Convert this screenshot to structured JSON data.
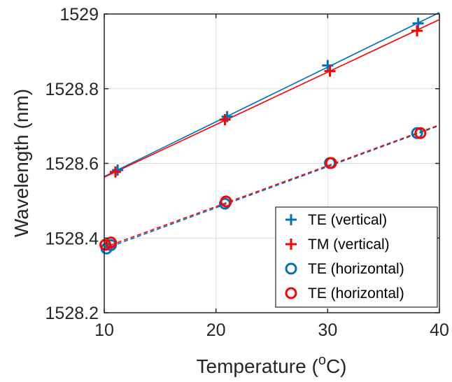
{
  "chart_data": {
    "type": "scatter",
    "title": "",
    "xlabel": "Temperature (",
    "xlabel_superscript": "o",
    "xlabel_suffix": "C)",
    "ylabel": "Wavelength (nm)",
    "xlim": [
      10,
      40
    ],
    "ylim": [
      1528.2,
      1529
    ],
    "xticks": [
      "10",
      "20",
      "30",
      "40"
    ],
    "yticks": [
      "1528.2",
      "1528.4",
      "1528.6",
      "1528.8",
      "1529"
    ],
    "grid": true,
    "legend_position": "bottom-right",
    "series": [
      {
        "name": "TE (vertical)",
        "marker": "plus",
        "color": "#0072BD",
        "x": [
          11.2,
          21.0,
          30.0,
          38.1
        ],
        "y": [
          1528.582,
          1528.725,
          1528.862,
          1528.975
        ],
        "fit": {
          "style": "solid",
          "y_at_xmin": 1528.565,
          "y_at_xmax": 1529.004
        }
      },
      {
        "name": "TM (vertical)",
        "marker": "plus",
        "color": "#FF0000",
        "x": [
          11.0,
          20.8,
          30.2,
          38.0
        ],
        "y": [
          1528.577,
          1528.717,
          1528.847,
          1528.955
        ],
        "fit": {
          "style": "solid",
          "y_at_xmin": 1528.563,
          "y_at_xmax": 1528.985
        }
      },
      {
        "name": "TE (horizontal)",
        "marker": "circle",
        "color": "#0072BD",
        "x": [
          10.2,
          10.6,
          20.8,
          30.2,
          38.0
        ],
        "y": [
          1528.372,
          1528.381,
          1528.492,
          1528.601,
          1528.681
        ],
        "fit": {
          "style": "dashed",
          "y_at_xmin": 1528.371,
          "y_at_xmax": 1528.701
        }
      },
      {
        "name": "TE (horizontal)",
        "marker": "circle",
        "color": "#FF0000",
        "x": [
          10.1,
          10.6,
          20.9,
          30.3,
          38.3
        ],
        "y": [
          1528.382,
          1528.388,
          1528.498,
          1528.601,
          1528.681
        ],
        "fit": {
          "style": "dashed",
          "y_at_xmin": 1528.375,
          "y_at_xmax": 1528.703
        }
      }
    ]
  }
}
